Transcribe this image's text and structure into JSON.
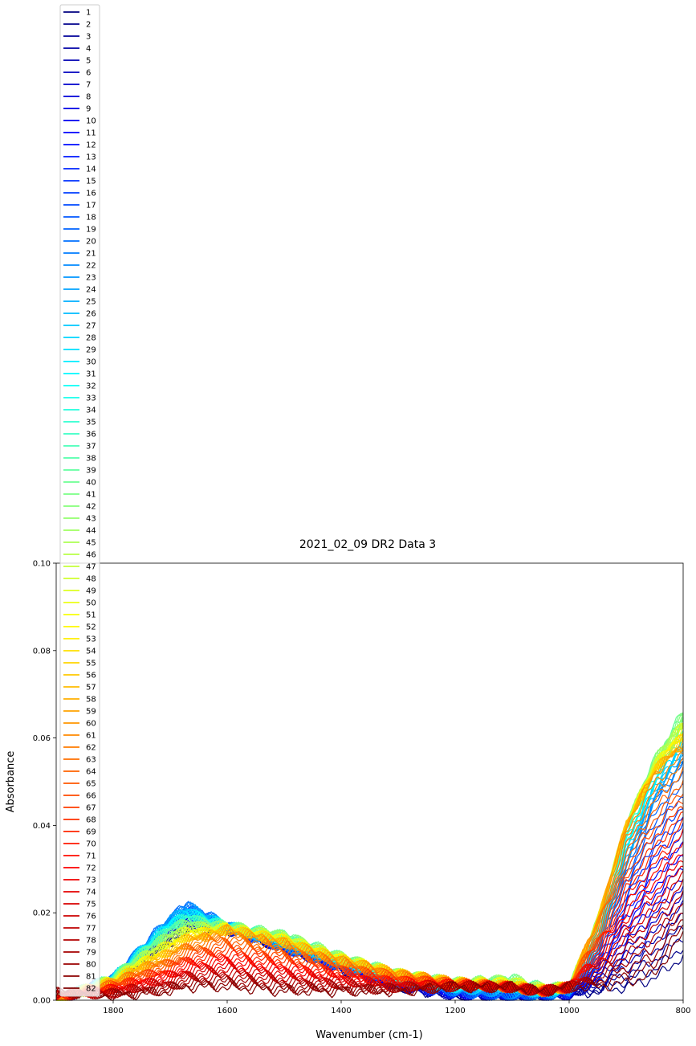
{
  "chart_data": {
    "type": "line",
    "title": "2021_02_09 DR2 Data 3",
    "xlabel": "Wavenumber (cm-1)",
    "ylabel": "Absorbance",
    "xlim": [
      1900,
      800
    ],
    "x_inverted": true,
    "ylim": [
      0,
      0.1
    ],
    "xticks": [
      "1800",
      "1600",
      "1400",
      "1200",
      "1000",
      "800"
    ],
    "yticks": [
      "0.00",
      "0.02",
      "0.04",
      "0.06",
      "0.08",
      "0.10"
    ],
    "grid": false,
    "legend_position": "upper-left",
    "colormap": "jet",
    "series_count": 82,
    "series_names": [
      "1",
      "2",
      "3",
      "4",
      "5",
      "6",
      "7",
      "8",
      "9",
      "10",
      "11",
      "12",
      "13",
      "14",
      "15",
      "16",
      "17",
      "18",
      "19",
      "20",
      "21",
      "22",
      "23",
      "24",
      "25",
      "26",
      "27",
      "28",
      "29",
      "30",
      "31",
      "32",
      "33",
      "34",
      "35",
      "36",
      "37",
      "38",
      "39",
      "40",
      "41",
      "42",
      "43",
      "44",
      "45",
      "46",
      "47",
      "48",
      "49",
      "50",
      "51",
      "52",
      "53",
      "54",
      "55",
      "56",
      "57",
      "58",
      "59",
      "60",
      "61",
      "62",
      "63",
      "64",
      "65",
      "66",
      "67",
      "68",
      "69",
      "70",
      "71",
      "72",
      "73",
      "74",
      "75",
      "76",
      "77",
      "78",
      "79",
      "80",
      "81",
      "82"
    ],
    "representative_series": [
      {
        "name": "1",
        "x": [
          1900,
          1800,
          1700,
          1670,
          1600,
          1500,
          1400,
          1300,
          1200,
          1100,
          1050,
          1000,
          950,
          900,
          850,
          800
        ],
        "y": [
          0.0,
          0.004,
          0.013,
          0.016,
          0.016,
          0.012,
          0.007,
          0.003,
          0.001,
          0.001,
          0.001,
          0.001,
          0.002,
          0.003,
          0.005,
          0.01
        ]
      },
      {
        "name": "20",
        "x": [
          1900,
          1800,
          1700,
          1670,
          1600,
          1500,
          1400,
          1300,
          1200,
          1100,
          1050,
          1000,
          950,
          900,
          850,
          800
        ],
        "y": [
          0.0,
          0.005,
          0.019,
          0.022,
          0.017,
          0.012,
          0.008,
          0.004,
          0.002,
          0.001,
          0.001,
          0.002,
          0.01,
          0.03,
          0.045,
          0.054
        ]
      },
      {
        "name": "40",
        "x": [
          1900,
          1800,
          1700,
          1670,
          1600,
          1500,
          1400,
          1300,
          1200,
          1100,
          1050,
          1000,
          950,
          900,
          850,
          800
        ],
        "y": [
          0.0,
          0.005,
          0.016,
          0.018,
          0.017,
          0.015,
          0.01,
          0.006,
          0.004,
          0.005,
          0.003,
          0.003,
          0.018,
          0.04,
          0.055,
          0.066
        ]
      },
      {
        "name": "60",
        "x": [
          1900,
          1800,
          1700,
          1670,
          1600,
          1500,
          1400,
          1300,
          1200,
          1100,
          1050,
          1000,
          950,
          900,
          850,
          800
        ],
        "y": [
          0.0,
          0.004,
          0.01,
          0.013,
          0.016,
          0.013,
          0.009,
          0.006,
          0.004,
          0.003,
          0.002,
          0.003,
          0.018,
          0.04,
          0.052,
          0.058
        ]
      },
      {
        "name": "82",
        "x": [
          1900,
          1800,
          1700,
          1670,
          1600,
          1500,
          1400,
          1300,
          1200,
          1100,
          1050,
          1000,
          950,
          900,
          850,
          800
        ],
        "y": [
          0.002,
          0.001,
          0.002,
          0.003,
          0.003,
          0.002,
          0.002,
          0.002,
          0.003,
          0.003,
          0.002,
          0.003,
          0.003,
          0.004,
          0.006,
          0.015
        ]
      }
    ]
  }
}
